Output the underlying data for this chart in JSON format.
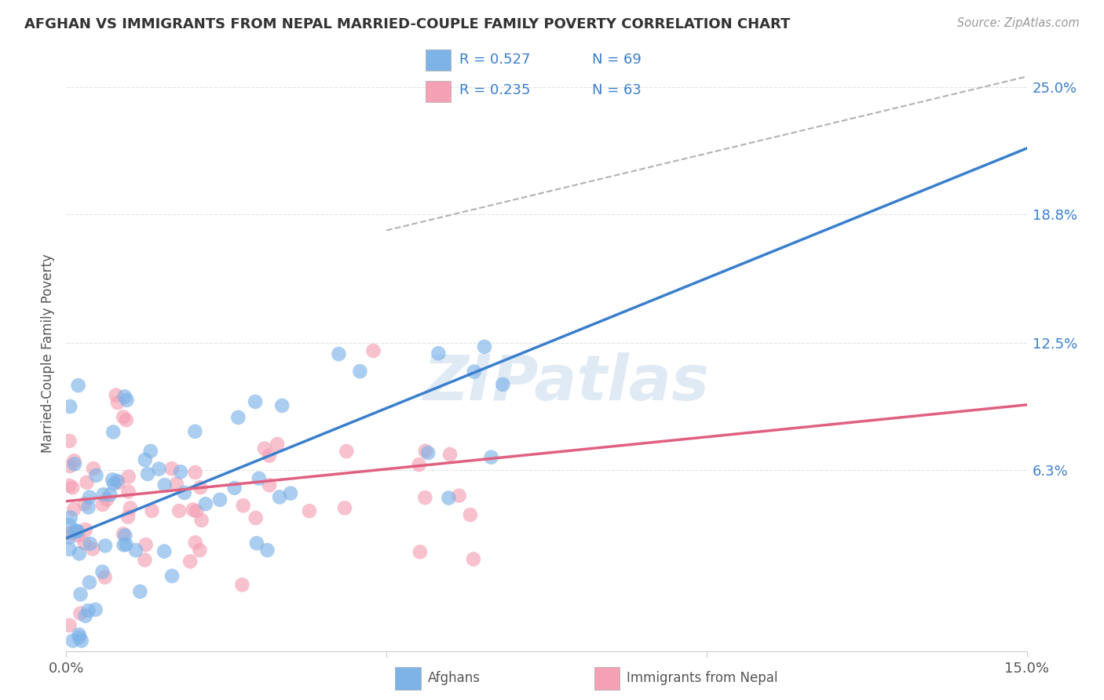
{
  "title": "AFGHAN VS IMMIGRANTS FROM NEPAL MARRIED-COUPLE FAMILY POVERTY CORRELATION CHART",
  "source": "Source: ZipAtlas.com",
  "ylabel": "Married-Couple Family Poverty",
  "xmin": 0.0,
  "xmax": 0.15,
  "ymin": -0.025,
  "ymax": 0.265,
  "y_ticks_right": [
    0.063,
    0.125,
    0.188,
    0.25
  ],
  "y_tick_labels_right": [
    "6.3%",
    "12.5%",
    "18.8%",
    "25.0%"
  ],
  "afghan_color": "#7EB3E8",
  "nepal_color": "#F4A0B5",
  "afghan_line_color": "#3A7FCC",
  "nepal_line_color": "#E06080",
  "afghan_R": 0.527,
  "afghan_N": 69,
  "nepal_R": 0.235,
  "nepal_N": 63,
  "watermark": "ZIPatlas",
  "background_color": "#FFFFFF",
  "grid_color": "#DDDDDD",
  "legend_text_color": "#3A7FCC",
  "title_color": "#333333",
  "source_color": "#999999",
  "label_color": "#555555"
}
